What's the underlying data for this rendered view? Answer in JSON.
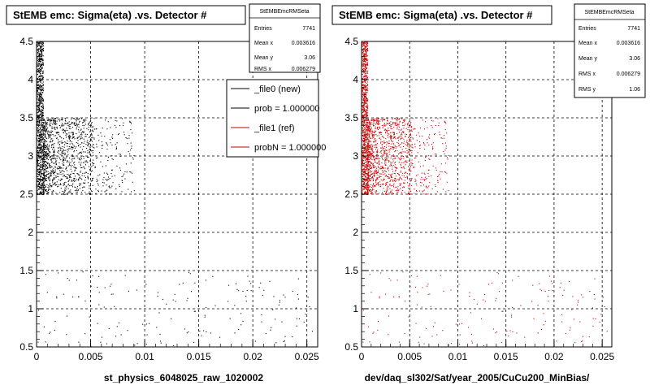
{
  "colors": {
    "ref": "#000000",
    "new": "#cc0000",
    "background": "#ffffff",
    "grid": "#000000"
  },
  "panels": [
    {
      "title": "StEMB emc: Sigma(eta) .vs. Detector #",
      "stats": {
        "header": "StEMBEmcRMSeta",
        "rows": [
          {
            "label": "Entries",
            "value": "7741"
          },
          {
            "label": "Mean x",
            "value": "0.003616"
          },
          {
            "label": "Mean y",
            "value": "3.06"
          },
          {
            "label": "RMS x",
            "value": "0.006279"
          }
        ]
      },
      "legend": {
        "items": [
          {
            "label": "_file0 (new)",
            "color": "#000000"
          },
          {
            "label": "prob = 1.000000",
            "color": "#000000"
          },
          {
            "label": "_file1 (ref)",
            "color": "#cc0000"
          },
          {
            "label": "probN = 1.000000",
            "color": "#cc0000"
          }
        ]
      },
      "filename": "st_physics_6048025_raw_1020002"
    },
    {
      "title": "StEMB emc: Sigma(eta) .vs. Detector #",
      "stats": {
        "header": "StEMBEmcRMSeta",
        "rows": [
          {
            "label": "Entries",
            "value": "7741"
          },
          {
            "label": "Mean x",
            "value": "0.003616"
          },
          {
            "label": "Mean y",
            "value": "3.06"
          },
          {
            "label": "RMS x",
            "value": "0.006279"
          },
          {
            "label": "RMS y",
            "value": "1.06"
          }
        ]
      },
      "filename": "dev/daq_sl302/Sat/year_2005/CuCu200_MinBias/"
    }
  ],
  "chart_data": [
    {
      "type": "scatter",
      "title": "StEMB emc: Sigma(eta) .vs. Detector #",
      "xlabel": "st_physics_6048025_raw_1020002",
      "ylabel": "",
      "xlim": [
        0,
        0.026
      ],
      "ylim": [
        0.5,
        4.5
      ],
      "x_ticks": [
        "0",
        "0.005",
        "0.01",
        "0.015",
        "0.02",
        "0.025"
      ],
      "y_ticks": [
        "0.5",
        "1",
        "1.5",
        "2",
        "2.5",
        "3",
        "3.5",
        "4",
        "4.5"
      ],
      "grid": true,
      "legend_position": "top-right",
      "marker_color": "#000000",
      "point_regions": [
        {
          "x": [
            0,
            0.0006
          ],
          "y": [
            2.5,
            4.5
          ],
          "density": "very high"
        },
        {
          "x": [
            0.0006,
            0.0052
          ],
          "y": [
            2.5,
            3.5
          ],
          "density": "high"
        },
        {
          "x": [
            0.0052,
            0.009
          ],
          "y": [
            2.5,
            3.5
          ],
          "density": "sparse"
        },
        {
          "x": [
            0,
            0.0255
          ],
          "y": [
            0.5,
            1.5
          ],
          "density": "sparse"
        }
      ]
    },
    {
      "type": "scatter",
      "title": "StEMB emc: Sigma(eta) .vs. Detector #",
      "xlabel": "dev/daq_sl302/Sat/year_2005/CuCu200_MinBias/",
      "ylabel": "",
      "xlim": [
        0,
        0.026
      ],
      "ylim": [
        0.5,
        4.5
      ],
      "x_ticks": [
        "0",
        "0.005",
        "0.01",
        "0.015",
        "0.02",
        "0.025"
      ],
      "y_ticks": [
        "0.5",
        "1",
        "1.5",
        "2",
        "2.5",
        "3",
        "3.5",
        "4",
        "4.5"
      ],
      "grid": true,
      "marker_color": "#cc0000",
      "point_regions": [
        {
          "x": [
            0,
            0.0006
          ],
          "y": [
            2.5,
            4.5
          ],
          "density": "very high"
        },
        {
          "x": [
            0.0006,
            0.0052
          ],
          "y": [
            2.5,
            3.5
          ],
          "density": "high"
        },
        {
          "x": [
            0.0052,
            0.009
          ],
          "y": [
            2.5,
            3.5
          ],
          "density": "sparse"
        },
        {
          "x": [
            0,
            0.0255
          ],
          "y": [
            0.5,
            1.5
          ],
          "density": "sparse"
        }
      ]
    }
  ]
}
